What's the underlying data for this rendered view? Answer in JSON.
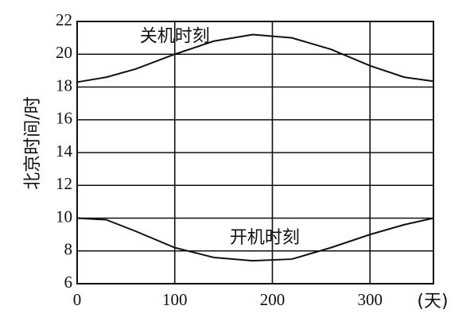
{
  "chart_data": {
    "type": "line",
    "y_label": "北京时间/时",
    "x_unit": "(天)",
    "x": [
      0,
      30,
      60,
      100,
      140,
      180,
      220,
      260,
      300,
      335,
      365
    ],
    "series": [
      {
        "name": "关机时刻",
        "color": "#111111",
        "values": [
          18.3,
          18.6,
          19.1,
          20.0,
          20.8,
          21.2,
          21.0,
          20.3,
          19.3,
          18.6,
          18.35
        ]
      },
      {
        "name": "开机时刻",
        "color": "#111111",
        "values": [
          10.0,
          9.9,
          9.2,
          8.2,
          7.6,
          7.4,
          7.5,
          8.2,
          9.0,
          9.6,
          10.0
        ]
      }
    ],
    "xlim": [
      0,
      365
    ],
    "ylim": [
      6,
      22
    ],
    "xticks": [
      0,
      100,
      200,
      300
    ],
    "yticks": [
      6,
      8,
      10,
      12,
      14,
      16,
      18,
      20,
      22
    ],
    "grid": true
  }
}
